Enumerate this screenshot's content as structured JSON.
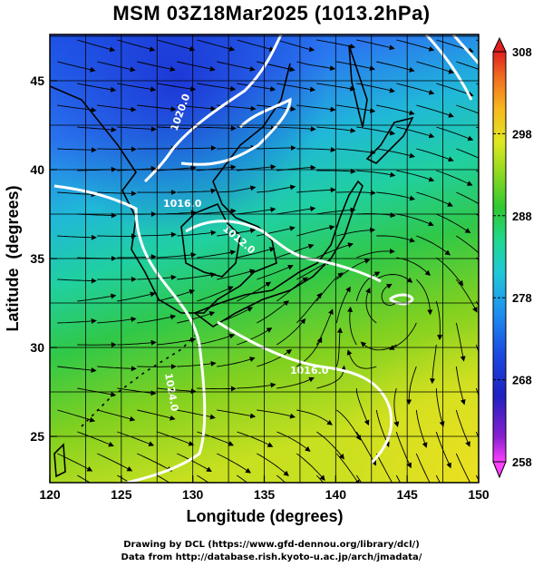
{
  "title": "MSM 03Z18Mar2025 (1013.2hPa)",
  "xlabel": "Longitude (degrees)",
  "ylabel": "Latitude  (degrees)",
  "x_ticks": [
    "120",
    "125",
    "130",
    "135",
    "140",
    "145",
    "150"
  ],
  "y_ticks": [
    "25",
    "30",
    "35",
    "40",
    "45"
  ],
  "colorbar_ticks": [
    "308",
    "298",
    "288",
    "278",
    "268",
    "258"
  ],
  "contour_labels": [
    "1020.0",
    "1016.0",
    "1012.0",
    "1024.0",
    "1016.0"
  ],
  "credit_line1": "Drawing by DCL (https://www.gfd-dennou.org/library/dcl/)",
  "credit_line2": "Data from http://database.rish.kyoto-u.ac.jp/arch/jmadata/",
  "map": {
    "lon_range": [
      120,
      150
    ],
    "lat_range": [
      22.4,
      47.6
    ],
    "temperature_range_K": [
      258,
      308
    ],
    "field": "temperature (K) at 1013.2hPa with streamlines and white pressure contours"
  },
  "colors": {
    "contour": "#ffffff",
    "coastline": "#000000",
    "streamline": "#000000"
  }
}
